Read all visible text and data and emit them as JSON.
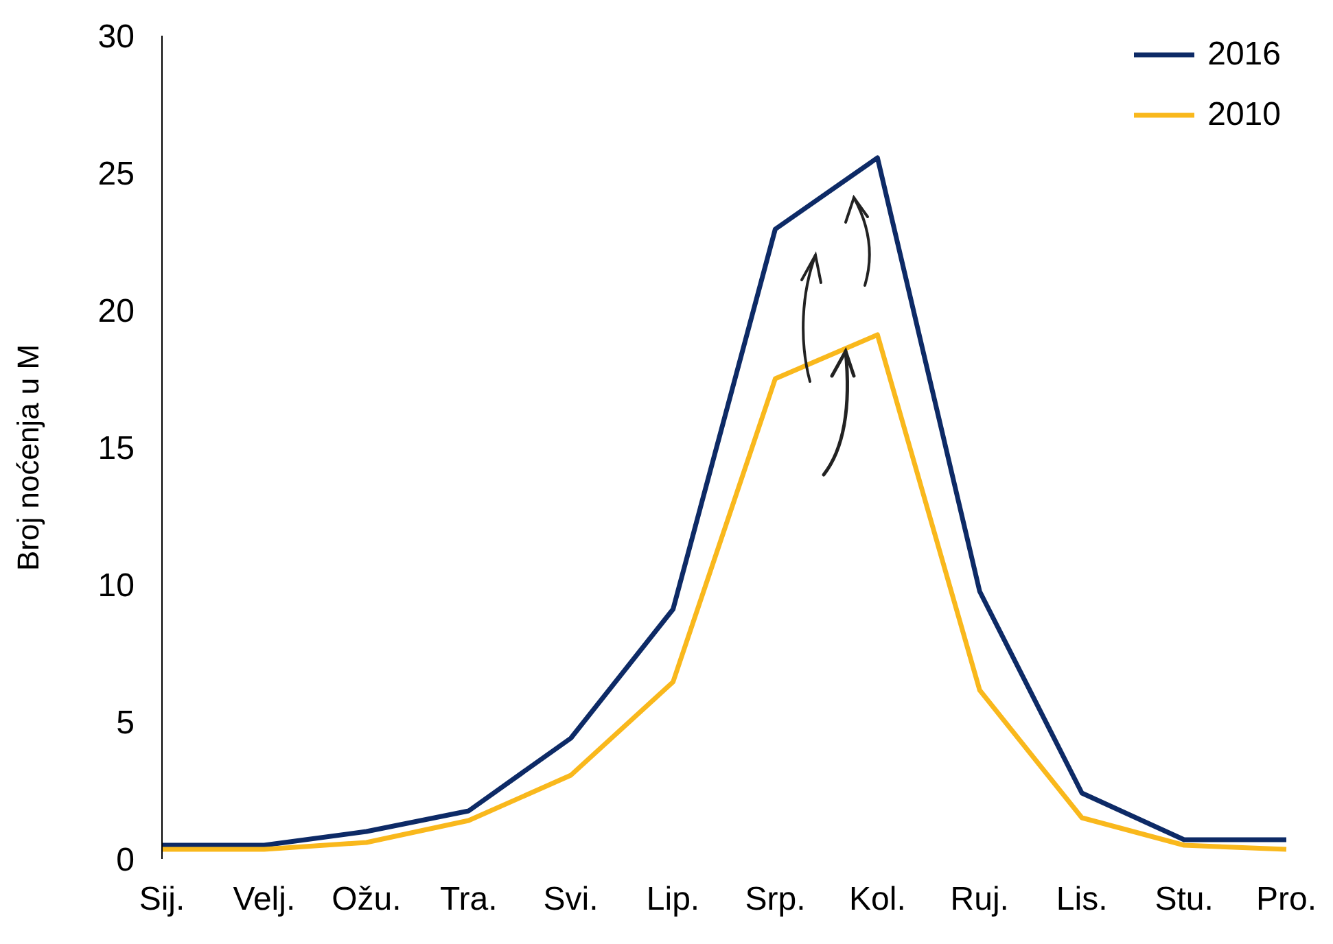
{
  "chart_data": {
    "type": "line",
    "ylabel": "Broj noćenja u M",
    "categories": [
      "Sij.",
      "Velj.",
      "Ožu.",
      "Tra.",
      "Svi.",
      "Lip.",
      "Srp.",
      "Kol.",
      "Ruj.",
      "Lis.",
      "Stu.",
      "Pro."
    ],
    "series": [
      {
        "name": "2016",
        "color": "#0d2a66",
        "values": [
          0.5,
          0.5,
          1.0,
          1.75,
          4.4,
          9.1,
          22.95,
          25.55,
          9.75,
          2.4,
          0.7,
          0.7
        ]
      },
      {
        "name": "2010",
        "color": "#f9b81c",
        "values": [
          0.35,
          0.35,
          0.6,
          1.4,
          3.05,
          6.45,
          17.5,
          19.1,
          6.15,
          1.5,
          0.5,
          0.35
        ]
      }
    ],
    "ylim": [
      0,
      30
    ],
    "yticks": [
      0,
      5,
      10,
      15,
      20,
      25,
      30
    ],
    "grid": false,
    "legend": "top right",
    "marker": "none",
    "line_style": "solid"
  }
}
